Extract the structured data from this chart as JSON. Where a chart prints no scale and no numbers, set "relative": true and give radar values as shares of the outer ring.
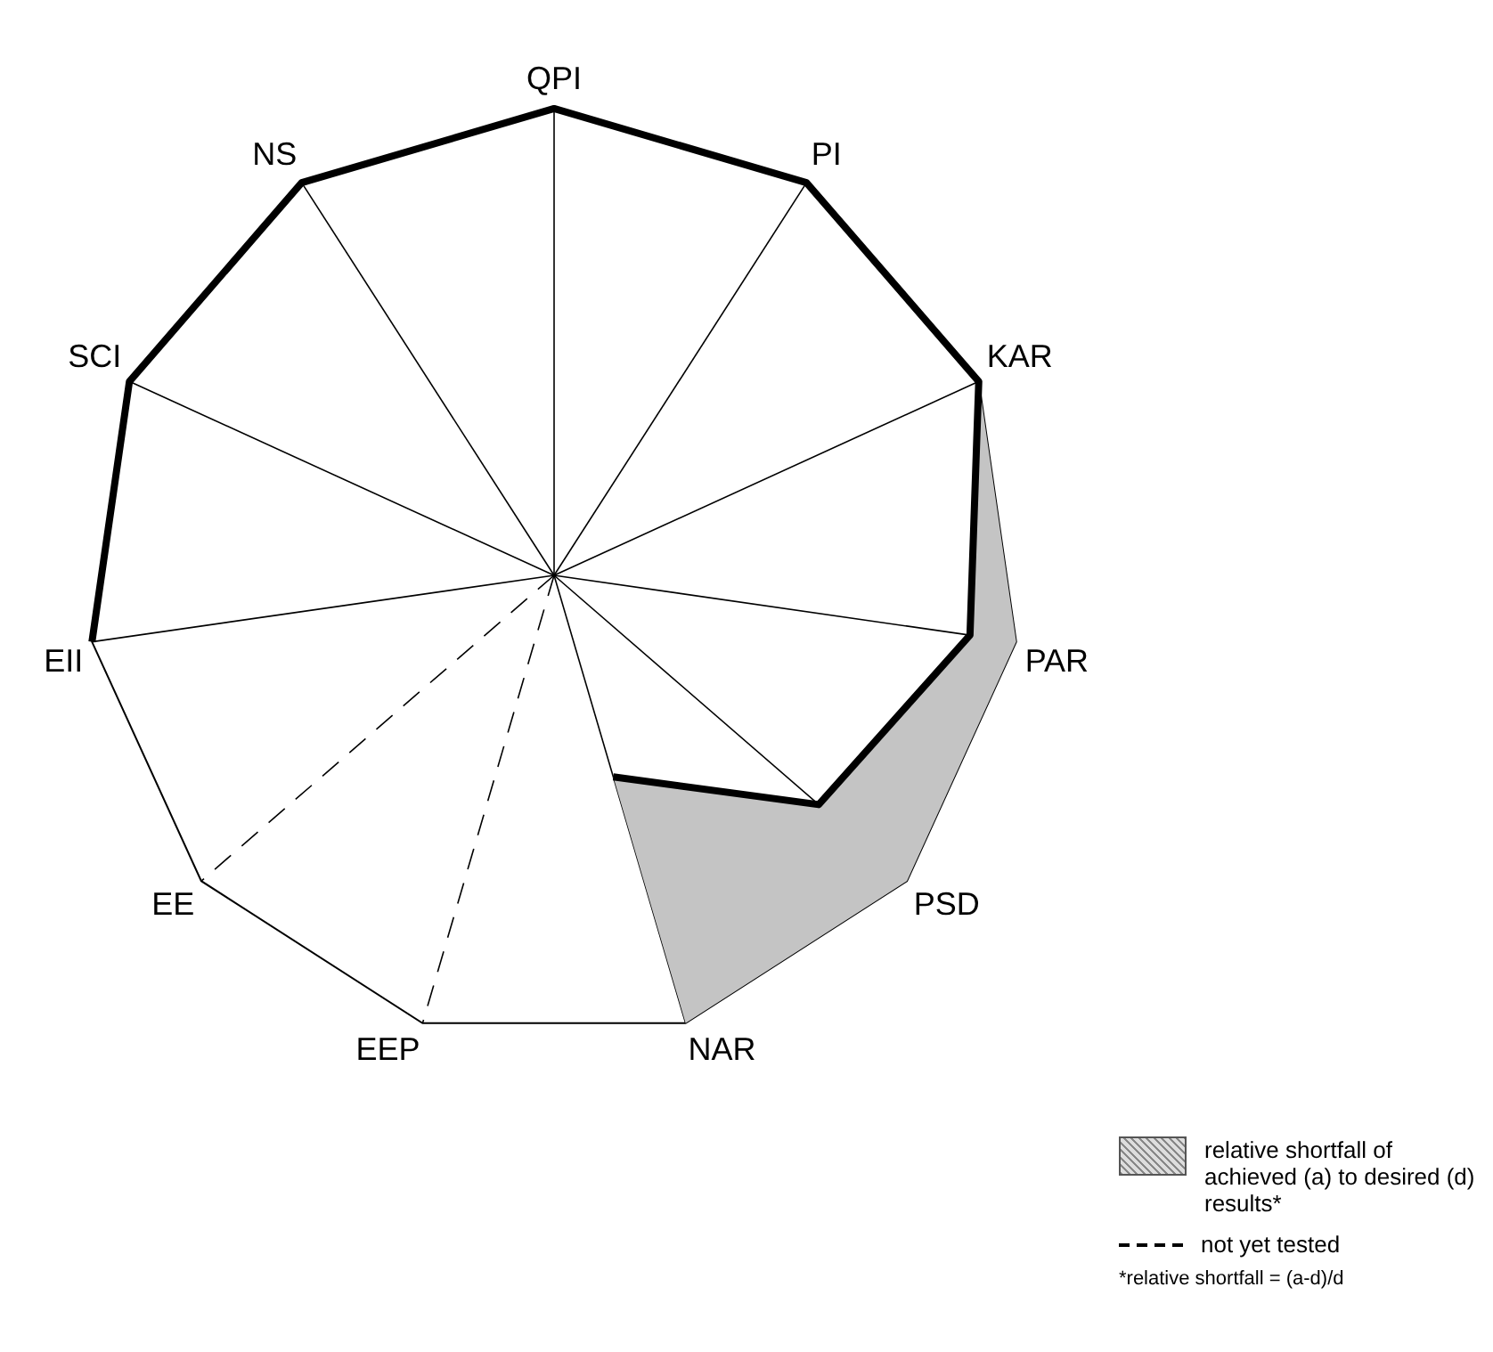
{
  "chart_data": {
    "type": "radar",
    "relative": true,
    "categories": [
      "QPI",
      "PI",
      "KAR",
      "PAR",
      "PSD",
      "NAR",
      "EEP",
      "EE",
      "EII",
      "SCI",
      "NS"
    ],
    "series": [
      {
        "color": "#000000",
        "values": [
          1,
          1,
          1,
          0.9,
          0.75,
          0.45,
          null,
          null,
          1,
          1,
          1
        ]
      }
    ],
    "marker": "none",
    "grid": false,
    "legend": false,
    "annotations": [
      "relative shortfall of achieved (a) to desired (d) results*",
      "not yet tested",
      "*relative shortfall = (a-d)/d"
    ]
  }
}
